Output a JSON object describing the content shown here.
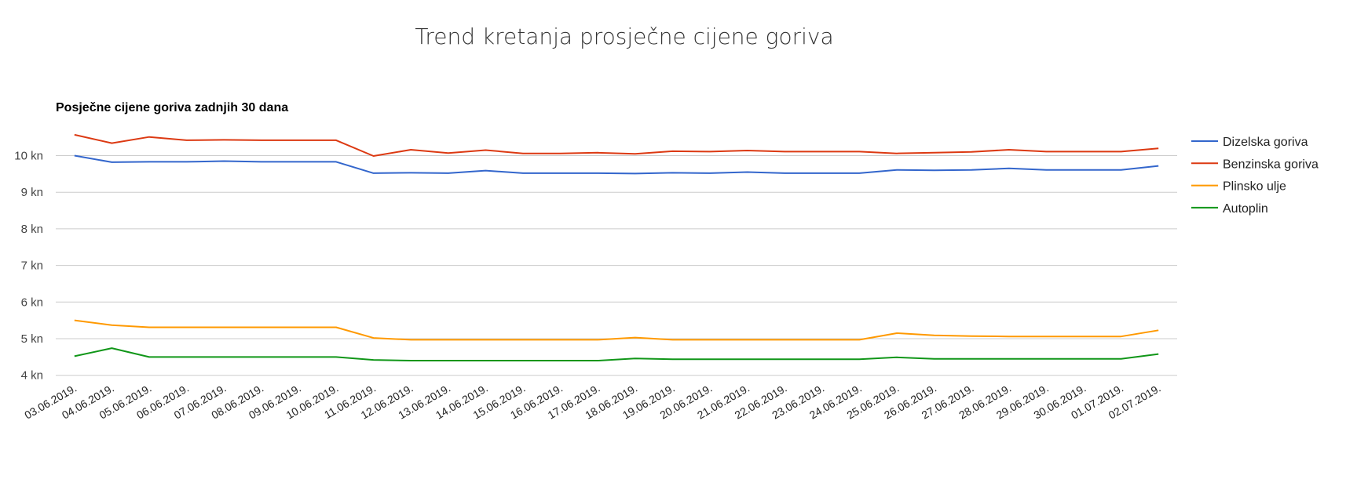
{
  "page": {
    "title": "Trend kretanja prosječne cijene goriva"
  },
  "chart_data": {
    "type": "line",
    "title": "Posječne cijene goriva zadnjih 30 dana",
    "xlabel": "",
    "ylabel": "",
    "y_unit_suffix": " kn",
    "ylim": [
      4,
      10.6
    ],
    "yticks": [
      4,
      5,
      6,
      7,
      8,
      9,
      10
    ],
    "ytick_labels": [
      "4 kn",
      "5 kn",
      "6 kn",
      "7 kn",
      "8 kn",
      "9 kn",
      "10 kn"
    ],
    "grid": true,
    "legend_position": "right",
    "categories": [
      "03.06.2019.",
      "04.06.2019.",
      "05.06.2019.",
      "06.06.2019.",
      "07.06.2019.",
      "08.06.2019.",
      "09.06.2019.",
      "10.06.2019.",
      "11.06.2019.",
      "12.06.2019.",
      "13.06.2019.",
      "14.06.2019.",
      "15.06.2019.",
      "16.06.2019.",
      "17.06.2019.",
      "18.06.2019.",
      "19.06.2019.",
      "20.06.2019.",
      "21.06.2019.",
      "22.06.2019.",
      "23.06.2019.",
      "24.06.2019.",
      "25.06.2019.",
      "26.06.2019.",
      "27.06.2019.",
      "28.06.2019.",
      "29.06.2019.",
      "30.06.2019.",
      "01.07.2019.",
      "02.07.2019."
    ],
    "series": [
      {
        "name": "Dizelska goriva",
        "color": "#3366cc",
        "values": [
          10.0,
          9.82,
          9.83,
          9.83,
          9.85,
          9.83,
          9.83,
          9.83,
          9.52,
          9.53,
          9.52,
          9.59,
          9.52,
          9.52,
          9.52,
          9.51,
          9.53,
          9.52,
          9.55,
          9.52,
          9.52,
          9.52,
          9.61,
          9.6,
          9.61,
          9.65,
          9.61,
          9.61,
          9.61,
          9.72
        ]
      },
      {
        "name": "Benzinska goriva",
        "color": "#dc3912",
        "values": [
          10.57,
          10.34,
          10.51,
          10.42,
          10.43,
          10.42,
          10.42,
          10.42,
          9.99,
          10.16,
          10.07,
          10.15,
          10.06,
          10.06,
          10.08,
          10.05,
          10.12,
          10.11,
          10.14,
          10.11,
          10.11,
          10.11,
          10.06,
          10.08,
          10.1,
          10.16,
          10.11,
          10.11,
          10.11,
          10.2
        ]
      },
      {
        "name": "Plinsko ulje",
        "color": "#ff9900",
        "values": [
          5.5,
          5.37,
          5.31,
          5.31,
          5.31,
          5.31,
          5.31,
          5.31,
          5.02,
          4.97,
          4.97,
          4.97,
          4.97,
          4.97,
          4.97,
          5.03,
          4.97,
          4.97,
          4.97,
          4.97,
          4.97,
          4.97,
          5.15,
          5.09,
          5.07,
          5.06,
          5.06,
          5.06,
          5.06,
          5.23
        ]
      },
      {
        "name": "Autoplin",
        "color": "#109618",
        "values": [
          4.52,
          4.74,
          4.5,
          4.5,
          4.5,
          4.5,
          4.5,
          4.5,
          4.42,
          4.4,
          4.4,
          4.4,
          4.4,
          4.4,
          4.4,
          4.46,
          4.44,
          4.44,
          4.44,
          4.44,
          4.44,
          4.44,
          4.49,
          4.45,
          4.45,
          4.45,
          4.45,
          4.45,
          4.45,
          4.58
        ]
      }
    ]
  }
}
